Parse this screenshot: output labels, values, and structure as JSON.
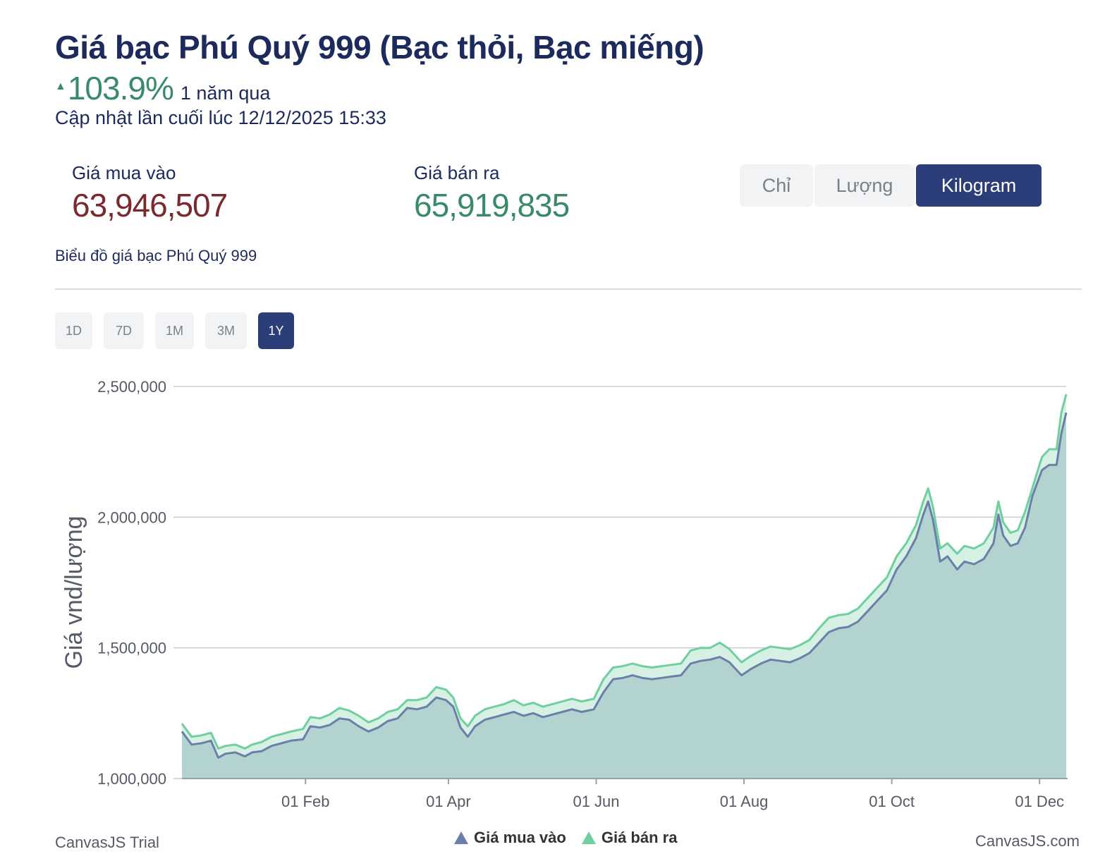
{
  "header": {
    "title": "Giá bạc Phú Quý 999 (Bạc thỏi, Bạc miếng)",
    "change_pct": "103.9%",
    "change_period": "1 năm qua",
    "updated": "Cập nhật lần cuối lúc 12/12/2025 15:33"
  },
  "prices": {
    "buy_label": "Giá mua vào",
    "buy_value": "63,946,507",
    "sell_label": "Giá bán ra",
    "sell_value": "65,919,835"
  },
  "unit_tabs": [
    "Chỉ",
    "Lượng",
    "Kilogram"
  ],
  "unit_tab_active": "Kilogram",
  "chart_subtitle": "Biểu đồ giá bạc Phú Quý 999",
  "range_tabs": [
    "1D",
    "7D",
    "1M",
    "3M",
    "1Y"
  ],
  "range_tab_active": "1Y",
  "footer": {
    "credit_left": "CanvasJS Trial",
    "credit_right": "CanvasJS.com"
  },
  "colors": {
    "buy_line": "#6b7fa8",
    "sell_line": "#6fcf9f",
    "area_fill": "#b3d3d0",
    "band_fill": "#d6f0e4",
    "up_green": "#3a8a6a",
    "buy_value_color": "#7a2a2e",
    "active_tab": "#2c3e7a"
  },
  "chart_data": {
    "type": "area",
    "ylabel": "Giá vnd/lượng",
    "ylim": [
      1000000,
      2500000
    ],
    "yticks": [
      1000000,
      1500000,
      2000000,
      2500000
    ],
    "ytick_labels": [
      "1,000,000",
      "1,500,000",
      "2,000,000",
      "2,500,000"
    ],
    "xlim": [
      "2024-12-12",
      "2025-12-12"
    ],
    "xticks": [
      "2025-02-01",
      "2025-04-01",
      "2025-06-01",
      "2025-08-01",
      "2025-10-01",
      "2025-12-01"
    ],
    "xtick_labels": [
      "01 Feb",
      "01 Apr",
      "01 Jun",
      "01 Aug",
      "01 Oct",
      "01 Dec"
    ],
    "grid": true,
    "legend_position": "bottom",
    "series": [
      {
        "name": "Giá mua vào",
        "points": [
          [
            "2024-12-12",
            1180000
          ],
          [
            "2024-12-16",
            1130000
          ],
          [
            "2024-12-20",
            1135000
          ],
          [
            "2024-12-24",
            1145000
          ],
          [
            "2024-12-27",
            1080000
          ],
          [
            "2024-12-30",
            1095000
          ],
          [
            "2025-01-03",
            1100000
          ],
          [
            "2025-01-07",
            1085000
          ],
          [
            "2025-01-10",
            1100000
          ],
          [
            "2025-01-14",
            1105000
          ],
          [
            "2025-01-18",
            1125000
          ],
          [
            "2025-01-22",
            1135000
          ],
          [
            "2025-01-26",
            1145000
          ],
          [
            "2025-01-31",
            1150000
          ],
          [
            "2025-02-03",
            1200000
          ],
          [
            "2025-02-07",
            1195000
          ],
          [
            "2025-02-11",
            1205000
          ],
          [
            "2025-02-15",
            1230000
          ],
          [
            "2025-02-19",
            1225000
          ],
          [
            "2025-02-23",
            1200000
          ],
          [
            "2025-02-27",
            1180000
          ],
          [
            "2025-03-03",
            1195000
          ],
          [
            "2025-03-07",
            1220000
          ],
          [
            "2025-03-11",
            1230000
          ],
          [
            "2025-03-15",
            1270000
          ],
          [
            "2025-03-19",
            1265000
          ],
          [
            "2025-03-23",
            1275000
          ],
          [
            "2025-03-27",
            1310000
          ],
          [
            "2025-03-31",
            1300000
          ],
          [
            "2025-04-03",
            1275000
          ],
          [
            "2025-04-06",
            1195000
          ],
          [
            "2025-04-09",
            1160000
          ],
          [
            "2025-04-12",
            1200000
          ],
          [
            "2025-04-16",
            1225000
          ],
          [
            "2025-04-20",
            1235000
          ],
          [
            "2025-04-24",
            1245000
          ],
          [
            "2025-04-28",
            1255000
          ],
          [
            "2025-05-02",
            1240000
          ],
          [
            "2025-05-06",
            1250000
          ],
          [
            "2025-05-10",
            1235000
          ],
          [
            "2025-05-14",
            1245000
          ],
          [
            "2025-05-18",
            1255000
          ],
          [
            "2025-05-22",
            1265000
          ],
          [
            "2025-05-26",
            1255000
          ],
          [
            "2025-05-31",
            1265000
          ],
          [
            "2025-06-04",
            1330000
          ],
          [
            "2025-06-08",
            1380000
          ],
          [
            "2025-06-12",
            1385000
          ],
          [
            "2025-06-16",
            1395000
          ],
          [
            "2025-06-20",
            1385000
          ],
          [
            "2025-06-24",
            1380000
          ],
          [
            "2025-06-28",
            1385000
          ],
          [
            "2025-07-02",
            1390000
          ],
          [
            "2025-07-06",
            1395000
          ],
          [
            "2025-07-10",
            1440000
          ],
          [
            "2025-07-14",
            1450000
          ],
          [
            "2025-07-18",
            1455000
          ],
          [
            "2025-07-22",
            1465000
          ],
          [
            "2025-07-26",
            1445000
          ],
          [
            "2025-07-31",
            1395000
          ],
          [
            "2025-08-04",
            1420000
          ],
          [
            "2025-08-08",
            1440000
          ],
          [
            "2025-08-12",
            1455000
          ],
          [
            "2025-08-16",
            1450000
          ],
          [
            "2025-08-20",
            1445000
          ],
          [
            "2025-08-24",
            1460000
          ],
          [
            "2025-08-28",
            1480000
          ],
          [
            "2025-09-01",
            1520000
          ],
          [
            "2025-09-05",
            1560000
          ],
          [
            "2025-09-09",
            1575000
          ],
          [
            "2025-09-13",
            1580000
          ],
          [
            "2025-09-17",
            1600000
          ],
          [
            "2025-09-21",
            1640000
          ],
          [
            "2025-09-25",
            1680000
          ],
          [
            "2025-09-29",
            1720000
          ],
          [
            "2025-10-03",
            1800000
          ],
          [
            "2025-10-07",
            1850000
          ],
          [
            "2025-10-11",
            1920000
          ],
          [
            "2025-10-14",
            2010000
          ],
          [
            "2025-10-16",
            2060000
          ],
          [
            "2025-10-18",
            1990000
          ],
          [
            "2025-10-21",
            1830000
          ],
          [
            "2025-10-24",
            1850000
          ],
          [
            "2025-10-28",
            1800000
          ],
          [
            "2025-10-31",
            1830000
          ],
          [
            "2025-11-04",
            1820000
          ],
          [
            "2025-11-08",
            1840000
          ],
          [
            "2025-11-12",
            1900000
          ],
          [
            "2025-11-14",
            2010000
          ],
          [
            "2025-11-16",
            1930000
          ],
          [
            "2025-11-19",
            1890000
          ],
          [
            "2025-11-22",
            1900000
          ],
          [
            "2025-11-25",
            1960000
          ],
          [
            "2025-11-28",
            2080000
          ],
          [
            "2025-12-02",
            2180000
          ],
          [
            "2025-12-05",
            2200000
          ],
          [
            "2025-12-08",
            2200000
          ],
          [
            "2025-12-10",
            2320000
          ],
          [
            "2025-12-12",
            2400000
          ]
        ]
      },
      {
        "name": "Giá bán ra",
        "points": [
          [
            "2024-12-12",
            1210000
          ],
          [
            "2024-12-16",
            1160000
          ],
          [
            "2024-12-20",
            1165000
          ],
          [
            "2024-12-24",
            1175000
          ],
          [
            "2024-12-27",
            1115000
          ],
          [
            "2024-12-30",
            1125000
          ],
          [
            "2025-01-03",
            1130000
          ],
          [
            "2025-01-07",
            1115000
          ],
          [
            "2025-01-10",
            1130000
          ],
          [
            "2025-01-14",
            1140000
          ],
          [
            "2025-01-18",
            1160000
          ],
          [
            "2025-01-22",
            1170000
          ],
          [
            "2025-01-26",
            1180000
          ],
          [
            "2025-01-31",
            1190000
          ],
          [
            "2025-02-03",
            1235000
          ],
          [
            "2025-02-07",
            1230000
          ],
          [
            "2025-02-11",
            1245000
          ],
          [
            "2025-02-15",
            1270000
          ],
          [
            "2025-02-19",
            1260000
          ],
          [
            "2025-02-23",
            1240000
          ],
          [
            "2025-02-27",
            1215000
          ],
          [
            "2025-03-03",
            1230000
          ],
          [
            "2025-03-07",
            1255000
          ],
          [
            "2025-03-11",
            1265000
          ],
          [
            "2025-03-15",
            1300000
          ],
          [
            "2025-03-19",
            1300000
          ],
          [
            "2025-03-23",
            1310000
          ],
          [
            "2025-03-27",
            1350000
          ],
          [
            "2025-03-31",
            1340000
          ],
          [
            "2025-04-03",
            1310000
          ],
          [
            "2025-04-06",
            1230000
          ],
          [
            "2025-04-09",
            1200000
          ],
          [
            "2025-04-12",
            1240000
          ],
          [
            "2025-04-16",
            1265000
          ],
          [
            "2025-04-20",
            1275000
          ],
          [
            "2025-04-24",
            1285000
          ],
          [
            "2025-04-28",
            1300000
          ],
          [
            "2025-05-02",
            1280000
          ],
          [
            "2025-05-06",
            1290000
          ],
          [
            "2025-05-10",
            1275000
          ],
          [
            "2025-05-14",
            1285000
          ],
          [
            "2025-05-18",
            1295000
          ],
          [
            "2025-05-22",
            1305000
          ],
          [
            "2025-05-26",
            1295000
          ],
          [
            "2025-05-31",
            1305000
          ],
          [
            "2025-06-04",
            1380000
          ],
          [
            "2025-06-08",
            1425000
          ],
          [
            "2025-06-12",
            1430000
          ],
          [
            "2025-06-16",
            1440000
          ],
          [
            "2025-06-20",
            1430000
          ],
          [
            "2025-06-24",
            1425000
          ],
          [
            "2025-06-28",
            1430000
          ],
          [
            "2025-07-02",
            1435000
          ],
          [
            "2025-07-06",
            1440000
          ],
          [
            "2025-07-10",
            1490000
          ],
          [
            "2025-07-14",
            1500000
          ],
          [
            "2025-07-18",
            1500000
          ],
          [
            "2025-07-22",
            1520000
          ],
          [
            "2025-07-26",
            1495000
          ],
          [
            "2025-07-31",
            1445000
          ],
          [
            "2025-08-04",
            1470000
          ],
          [
            "2025-08-08",
            1490000
          ],
          [
            "2025-08-12",
            1505000
          ],
          [
            "2025-08-16",
            1500000
          ],
          [
            "2025-08-20",
            1495000
          ],
          [
            "2025-08-24",
            1510000
          ],
          [
            "2025-08-28",
            1530000
          ],
          [
            "2025-09-01",
            1575000
          ],
          [
            "2025-09-05",
            1615000
          ],
          [
            "2025-09-09",
            1625000
          ],
          [
            "2025-09-13",
            1630000
          ],
          [
            "2025-09-17",
            1650000
          ],
          [
            "2025-09-21",
            1690000
          ],
          [
            "2025-09-25",
            1730000
          ],
          [
            "2025-09-29",
            1770000
          ],
          [
            "2025-10-03",
            1850000
          ],
          [
            "2025-10-07",
            1900000
          ],
          [
            "2025-10-11",
            1970000
          ],
          [
            "2025-10-14",
            2060000
          ],
          [
            "2025-10-16",
            2110000
          ],
          [
            "2025-10-18",
            2040000
          ],
          [
            "2025-10-21",
            1880000
          ],
          [
            "2025-10-24",
            1900000
          ],
          [
            "2025-10-28",
            1860000
          ],
          [
            "2025-10-31",
            1890000
          ],
          [
            "2025-11-04",
            1880000
          ],
          [
            "2025-11-08",
            1900000
          ],
          [
            "2025-11-12",
            1960000
          ],
          [
            "2025-11-14",
            2060000
          ],
          [
            "2025-11-16",
            1980000
          ],
          [
            "2025-11-19",
            1940000
          ],
          [
            "2025-11-22",
            1950000
          ],
          [
            "2025-11-25",
            2020000
          ],
          [
            "2025-12-02",
            2230000
          ],
          [
            "2025-12-05",
            2260000
          ],
          [
            "2025-12-08",
            2260000
          ],
          [
            "2025-12-10",
            2400000
          ],
          [
            "2025-12-12",
            2470000
          ]
        ]
      }
    ]
  }
}
